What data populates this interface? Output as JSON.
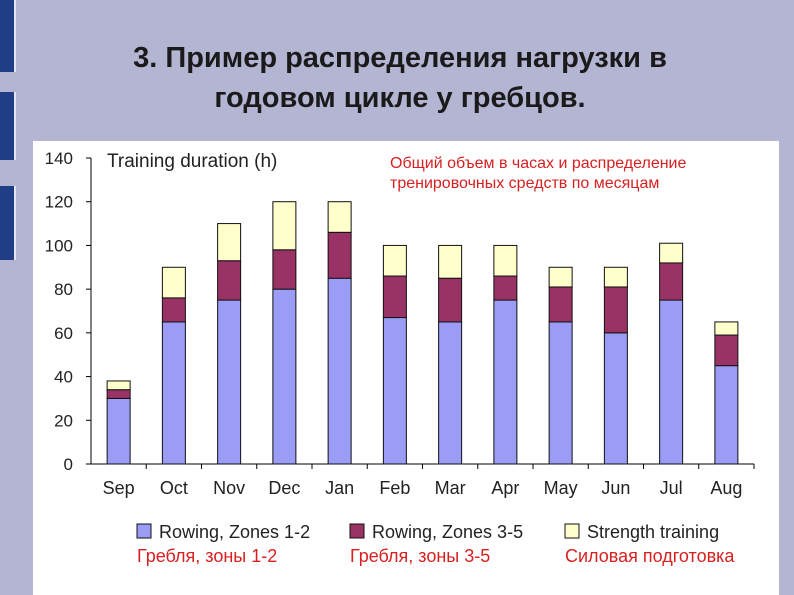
{
  "slide": {
    "title_line1": "3. Пример распределения нагрузки в",
    "title_line2": "годовом цикле у гребцов."
  },
  "chart_data": {
    "type": "bar",
    "stacked": true,
    "ylabel": "Training duration (h)",
    "annotation_line1": "Общий объем в часах и распределение",
    "annotation_line2": "тренировочных средств по месяцам",
    "ylim": [
      0,
      140
    ],
    "yticks": [
      0,
      20,
      40,
      60,
      80,
      100,
      120,
      140
    ],
    "categories": [
      "Sep",
      "Oct",
      "Nov",
      "Dec",
      "Jan",
      "Feb",
      "Mar",
      "Apr",
      "May",
      "Jun",
      "Jul",
      "Aug"
    ],
    "series": [
      {
        "name": "Rowing, Zones 1-2",
        "name_ru": "Гребля, зоны 1-2",
        "color": "#9a9cf6",
        "values": [
          30,
          65,
          75,
          80,
          85,
          67,
          65,
          75,
          65,
          60,
          75,
          45
        ]
      },
      {
        "name": "Rowing, Zones 3-5",
        "name_ru": "Гребля, зоны 3-5",
        "color": "#993366",
        "values": [
          4,
          11,
          18,
          18,
          21,
          19,
          20,
          11,
          16,
          21,
          17,
          14
        ]
      },
      {
        "name": "Strength training",
        "name_ru": "Силовая подготовка",
        "color": "#ffffcc",
        "values": [
          4,
          14,
          17,
          22,
          14,
          14,
          15,
          14,
          9,
          9,
          9,
          6
        ]
      }
    ],
    "legend": "bottom",
    "grid": false
  }
}
